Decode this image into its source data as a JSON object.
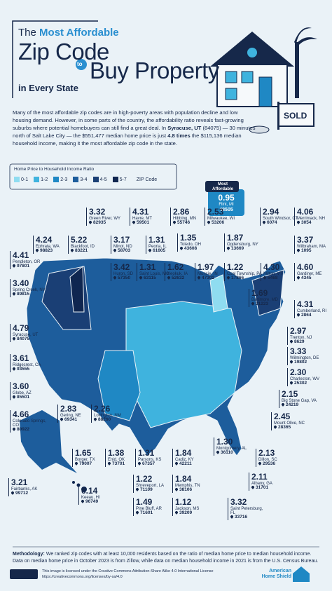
{
  "header": {
    "the": "The",
    "highlight": "Most Affordable",
    "line1": "Zip Code",
    "to": "to",
    "line2": "Buy Property",
    "sub": "in Every State"
  },
  "sign": "SOLD",
  "intro": [
    "Many of the most affordable zip codes are in high-poverty areas with population decline and low housing demand. However, in some parts of the country, the affordability ratio reveals fast-growing suburbs where potential homebuyers can still find a great deal. In ",
    "Syracuse, UT",
    " (84075) — 30 minutes north of Salt Lake City — the $551,477 median home price is just ",
    "4.8 times",
    " the $115,136 median household income, making it the most affordable zip code in the state."
  ],
  "legend": {
    "title": "Home Price to Household Income Ratio",
    "items": [
      {
        "label": "0-1",
        "color": "#8fdcf0"
      },
      {
        "label": "1-2",
        "color": "#3fb3de"
      },
      {
        "label": "2-3",
        "color": "#1f88c4"
      },
      {
        "label": "3-4",
        "color": "#1d5d9c"
      },
      {
        "label": "4-5",
        "color": "#1a3f75"
      },
      {
        "label": "5-7",
        "color": "#0f2650"
      }
    ],
    "zip": "ZIP Code"
  },
  "featured": {
    "title": "Most Affordable",
    "ratio": "0.95",
    "place": "Flint, MI",
    "zip": "48505"
  },
  "labels": [
    {
      "ratio": "3.32",
      "place": "Green River, WY",
      "zip": "82935"
    },
    {
      "ratio": "4.31",
      "place": "Havre, MT",
      "zip": "59501"
    },
    {
      "ratio": "2.86",
      "place": "Hibbing, MN",
      "zip": "55746"
    },
    {
      "ratio": "2.53",
      "place": "Milwaukee, WI",
      "zip": "53206"
    },
    {
      "ratio": "4.24",
      "place": "Ephrata, WA",
      "zip": "98823"
    },
    {
      "ratio": "5.22",
      "place": "Blackfoot, ID",
      "zip": "83221"
    },
    {
      "ratio": "3.17",
      "place": "Minot, ND",
      "zip": "58703"
    },
    {
      "ratio": "1.31",
      "place": "Peoria, IL",
      "zip": "61605"
    },
    {
      "ratio": "1.35",
      "place": "Toledo, OH",
      "zip": "43608"
    },
    {
      "ratio": "1.87",
      "place": "Ogdensburg, NY",
      "zip": "13669"
    },
    {
      "ratio": "2.94",
      "place": "South Windsor, CT",
      "zip": "6074"
    },
    {
      "ratio": "4.06",
      "place": "Merrimack, NH",
      "zip": "3054"
    },
    {
      "ratio": "3.37",
      "place": "Wilbraham, MA",
      "zip": "1095"
    },
    {
      "ratio": "4.41",
      "place": "Pendleton, OR",
      "zip": "97801"
    },
    {
      "ratio": "3.42",
      "place": "Huron, SD",
      "zip": "57350"
    },
    {
      "ratio": "1.31",
      "place": "Saint Louis, MO",
      "zip": "63115"
    },
    {
      "ratio": "1.62",
      "place": "Keokuk, IA",
      "zip": "52632"
    },
    {
      "ratio": "1.97",
      "place": "Muncie, IN",
      "zip": "47302"
    },
    {
      "ratio": "1.22",
      "place": "Coal Township, PA",
      "zip": "17866"
    },
    {
      "ratio": "4.30",
      "place": "Milton, VT",
      "zip": "5468"
    },
    {
      "ratio": "4.60",
      "place": "Gardiner, ME",
      "zip": "4345"
    },
    {
      "ratio": "3.40",
      "place": "Spring Creek, NV",
      "zip": "89815"
    },
    {
      "ratio": "1.69",
      "place": "Baltimore, MD",
      "zip": "21223"
    },
    {
      "ratio": "4.31",
      "place": "Cumberland, RI",
      "zip": "2864"
    },
    {
      "ratio": "4.79",
      "place": "Syracuse, UT",
      "zip": "84075"
    },
    {
      "ratio": "2.97",
      "place": "Trenton, NJ",
      "zip": "8629"
    },
    {
      "ratio": "3.33",
      "place": "Wilmington, DE",
      "zip": "19802"
    },
    {
      "ratio": "3.61",
      "place": "Ridgecrest, CA",
      "zip": "93555"
    },
    {
      "ratio": "2.30",
      "place": "Charleston, WV",
      "zip": "25302"
    },
    {
      "ratio": "3.60",
      "place": "Globe, AZ",
      "zip": "85501"
    },
    {
      "ratio": "2.15",
      "place": "Big Stone Gap, VA",
      "zip": "24219"
    },
    {
      "ratio": "4.66",
      "place": "Colorado Springs, CO",
      "zip": "80922"
    },
    {
      "ratio": "2.45",
      "place": "Mount Olive, NC",
      "zip": "28365"
    },
    {
      "ratio": "2.83",
      "place": "Gering, NE",
      "zip": "69341"
    },
    {
      "ratio": "2.26",
      "place": "Lovington, NM",
      "zip": "88260"
    },
    {
      "ratio": "1.30",
      "place": "Montgomery, AL",
      "zip": "36110"
    },
    {
      "ratio": "1.65",
      "place": "Borger, TX",
      "zip": "79007"
    },
    {
      "ratio": "1.38",
      "place": "Enid, OK",
      "zip": "73701"
    },
    {
      "ratio": "1.31",
      "place": "Parsons, KS",
      "zip": "67357"
    },
    {
      "ratio": "1.84",
      "place": "Cadiz, KY",
      "zip": "42211"
    },
    {
      "ratio": "2.13",
      "place": "Dillon, SC",
      "zip": "29536"
    },
    {
      "ratio": "2.11",
      "place": "Albany, GA",
      "zip": "31701"
    },
    {
      "ratio": "1.22",
      "place": "Shreveport, LA",
      "zip": "71109"
    },
    {
      "ratio": "1.84",
      "place": "Memphis, TN",
      "zip": "38106"
    },
    {
      "ratio": "3.21",
      "place": "Fairbanks, AK",
      "zip": "99712"
    },
    {
      "ratio": "1.49",
      "place": "Pine Bluff, AR",
      "zip": "71601"
    },
    {
      "ratio": "1.12",
      "place": "Jackson, MS",
      "zip": "39209"
    },
    {
      "ratio": "3.32",
      "place": "Saint Petersburg, FL",
      "zip": "33716"
    },
    {
      "ratio": "6.14",
      "place": "Keeau, HI",
      "zip": "96749"
    }
  ],
  "footer": {
    "method_label": "Methodology:",
    "method": "We ranked zip codes with at least 10,000 residents based on the ratio of median home price to median household income. Data on median home price in October 2023 is from Zillow, while data on median household income in 2021 is from the U.S. Census Bureau.",
    "license": "This image is licensed under the Creative Commons Attribution-Share Alike 4.0 International License",
    "url": "https://creativecommons.org/licenses/by-sa/4.0",
    "logo1": "American",
    "logo2": "Home Shield"
  }
}
